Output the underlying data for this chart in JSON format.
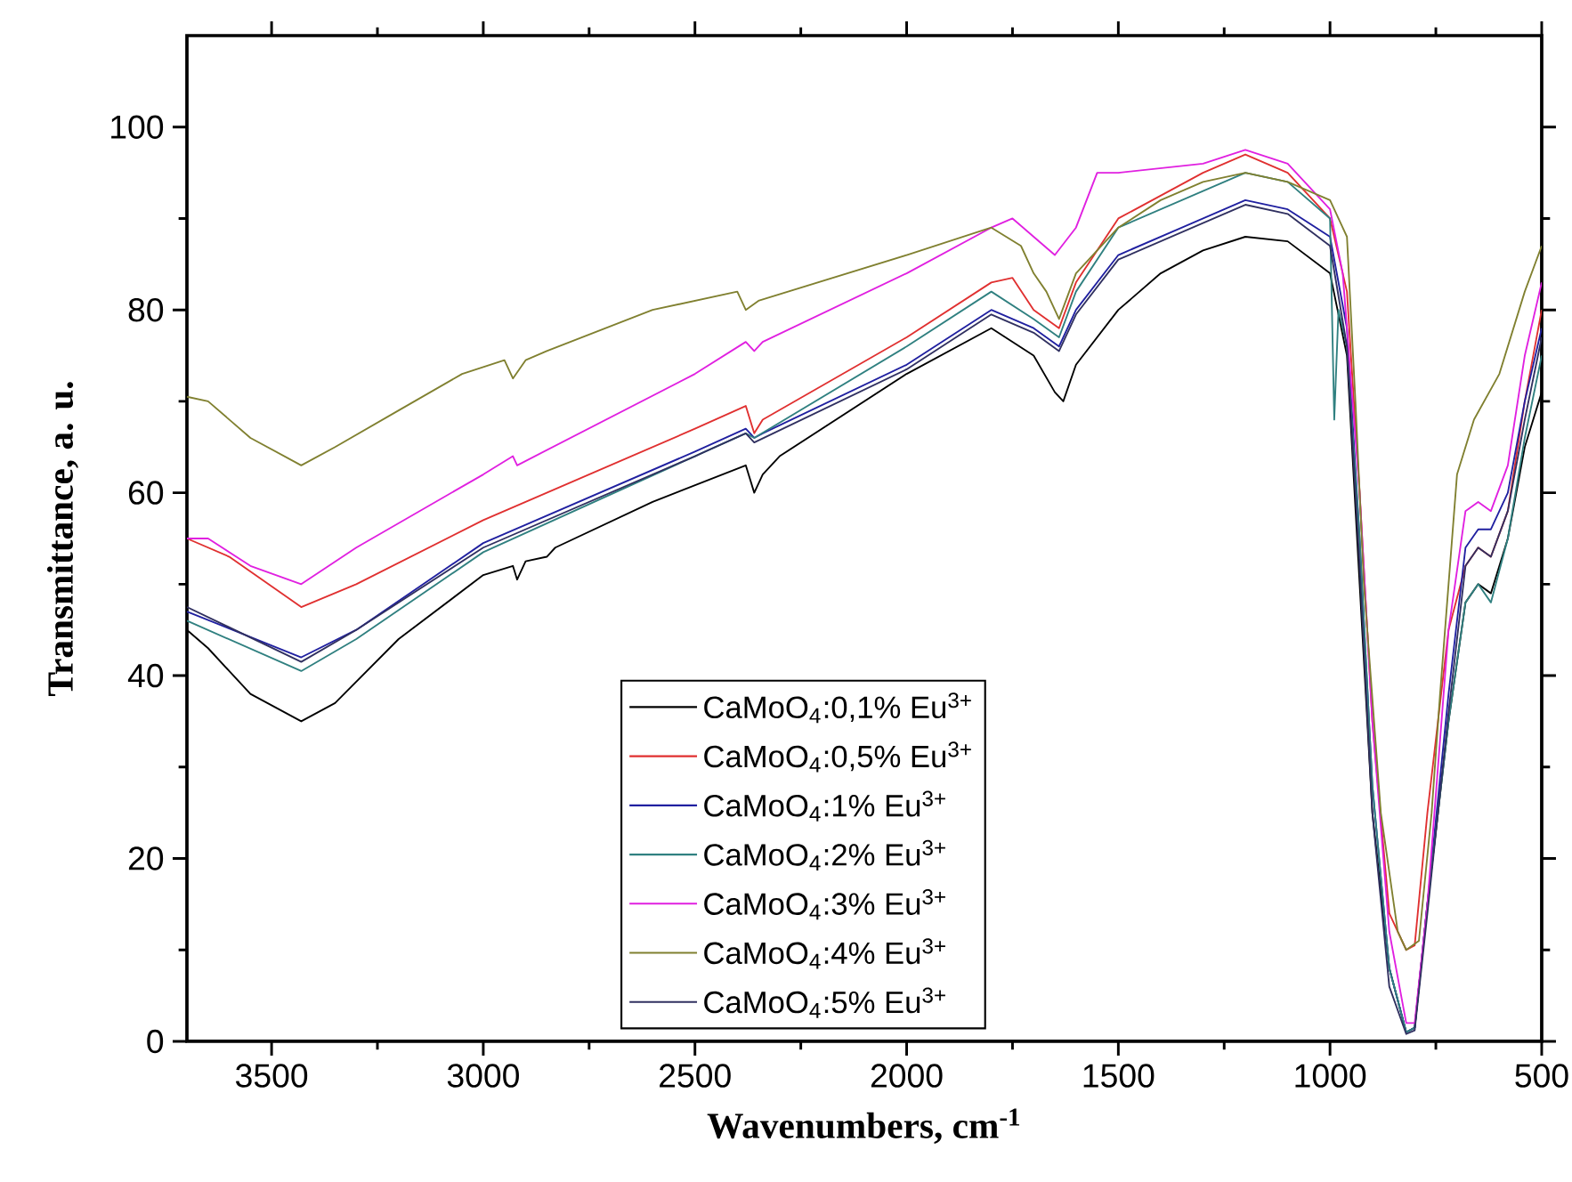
{
  "chart_data": {
    "type": "line",
    "xlabel": "**Wavenumbers, cm$^{-1}$**",
    "ylabel": "**Transmittance, a. u.**",
    "xlim": [
      3700,
      500
    ],
    "ylim": [
      0,
      110
    ],
    "xticks": [
      3500,
      3000,
      2500,
      2000,
      1500,
      1000,
      500
    ],
    "yticks": [
      0,
      20,
      40,
      60,
      80,
      100
    ],
    "legend": "bottom",
    "series": [
      {
        "name": "CaMoO$_{4}$:0,1% Eu$^{3+}$",
        "color": "#000000",
        "x": [
          3700,
          3650,
          3550,
          3430,
          3350,
          3200,
          3000,
          2930,
          2920,
          2900,
          2850,
          2830,
          2600,
          2380,
          2360,
          2340,
          2300,
          2000,
          1800,
          1700,
          1650,
          1630,
          1600,
          1500,
          1400,
          1300,
          1200,
          1100,
          1000,
          960,
          930,
          900,
          860,
          820,
          800,
          770,
          720,
          680,
          650,
          620,
          580,
          540,
          500
        ],
        "values": [
          45,
          43,
          38,
          35,
          37,
          44,
          51,
          52,
          50.5,
          52.5,
          53,
          54,
          59,
          63,
          60,
          62,
          64,
          73,
          78,
          75,
          71,
          70,
          74,
          80,
          84,
          86.5,
          88,
          87.5,
          84,
          75,
          50,
          25,
          8,
          1,
          1.5,
          15,
          35,
          48,
          50,
          49,
          55,
          65,
          71
        ]
      },
      {
        "name": "CaMoO$_{4}$:0,5% Eu$^{3+}$",
        "color": "#e03030",
        "x": [
          3700,
          3600,
          3430,
          3300,
          3000,
          2900,
          2500,
          2380,
          2360,
          2340,
          2000,
          1800,
          1750,
          1700,
          1640,
          1600,
          1500,
          1300,
          1200,
          1100,
          1000,
          960,
          930,
          900,
          860,
          820,
          800,
          770,
          720,
          680,
          650,
          620,
          580,
          540,
          500
        ],
        "values": [
          55,
          53,
          47.5,
          50,
          57,
          59,
          67,
          69.5,
          66.5,
          68,
          77,
          83,
          83.5,
          80,
          78,
          83,
          90,
          95,
          97,
          95,
          90,
          82,
          60,
          35,
          14,
          10,
          10.5,
          25,
          45,
          52,
          54,
          53,
          58,
          70,
          80
        ]
      },
      {
        "name": "CaMoO$_{4}$:1% Eu$^{3+}$",
        "color": "#2020a0",
        "x": [
          3700,
          3430,
          3300,
          3000,
          2900,
          2500,
          2380,
          2360,
          2340,
          2000,
          1800,
          1700,
          1640,
          1600,
          1500,
          1300,
          1200,
          1100,
          1000,
          960,
          930,
          900,
          860,
          820,
          800,
          770,
          720,
          680,
          650,
          620,
          580,
          540,
          500
        ],
        "values": [
          47,
          42,
          45,
          54.5,
          56.5,
          64.5,
          67,
          66,
          66.5,
          74,
          80,
          78,
          76,
          80,
          86,
          90,
          92,
          91,
          88,
          78,
          55,
          28,
          8,
          1,
          1.5,
          15,
          38,
          54,
          56,
          56,
          60,
          70,
          78
        ]
      },
      {
        "name": "CaMoO$_{4}$:2% Eu$^{3+}$",
        "color": "#308080",
        "x": [
          3700,
          3430,
          3300,
          3000,
          2500,
          2380,
          2360,
          2000,
          1800,
          1700,
          1640,
          1600,
          1500,
          1300,
          1200,
          1100,
          1000,
          990,
          980,
          960,
          930,
          900,
          860,
          820,
          800,
          770,
          720,
          680,
          650,
          620,
          580,
          540,
          500
        ],
        "values": [
          46,
          40.5,
          44,
          53.5,
          64,
          66.5,
          66,
          76,
          82,
          79,
          77,
          82,
          89,
          93,
          95,
          94,
          90,
          68,
          80,
          76,
          55,
          28,
          8,
          1,
          1.5,
          15,
          35,
          48,
          50,
          48,
          55,
          66,
          75
        ]
      },
      {
        "name": "CaMoO$_{4}$:3% Eu$^{3+}$",
        "color": "#e020e0",
        "x": [
          3700,
          3650,
          3550,
          3430,
          3300,
          3000,
          2930,
          2920,
          2500,
          2380,
          2360,
          2340,
          2000,
          1800,
          1750,
          1700,
          1650,
          1600,
          1550,
          1500,
          1300,
          1200,
          1100,
          1000,
          970,
          930,
          900,
          860,
          820,
          800,
          770,
          720,
          680,
          650,
          620,
          580,
          540,
          500
        ],
        "values": [
          55,
          55,
          52,
          50,
          54,
          62,
          64,
          63,
          73,
          76.5,
          75.5,
          76.5,
          84,
          89,
          90,
          88,
          86,
          89,
          95,
          95,
          96,
          97.5,
          96,
          91,
          84,
          60,
          35,
          12,
          2,
          2,
          15,
          45,
          58,
          59,
          58,
          63,
          75,
          83
        ]
      },
      {
        "name": "CaMoO$_{4}$:4% Eu$^{3+}$",
        "color": "#808030",
        "x": [
          3700,
          3650,
          3550,
          3430,
          3350,
          3200,
          3050,
          2950,
          2930,
          2900,
          2850,
          2600,
          2400,
          2380,
          2350,
          2000,
          1800,
          1730,
          1700,
          1670,
          1640,
          1600,
          1500,
          1400,
          1300,
          1200,
          1100,
          1000,
          960,
          940,
          920,
          880,
          840,
          820,
          790,
          760,
          740,
          700,
          660,
          600,
          540,
          500
        ],
        "values": [
          70.5,
          70,
          66,
          63,
          65,
          69,
          73,
          74.5,
          72.5,
          74.5,
          75.5,
          80,
          82,
          80,
          81,
          86,
          89,
          87,
          84,
          82,
          79,
          84,
          89,
          92,
          94,
          95,
          94,
          92,
          88,
          70,
          50,
          25,
          12,
          10,
          11,
          25,
          38,
          62,
          68,
          73,
          82,
          87
        ]
      },
      {
        "name": "CaMoO$_{4}$:5% Eu$^{3+}$",
        "color": "#303060",
        "x": [
          3700,
          3430,
          3300,
          3000,
          2500,
          2380,
          2360,
          2000,
          1800,
          1700,
          1640,
          1600,
          1500,
          1300,
          1200,
          1100,
          1000,
          960,
          930,
          900,
          860,
          820,
          800,
          770,
          720,
          680,
          650,
          620,
          580,
          540,
          500
        ],
        "values": [
          47.5,
          41.5,
          45,
          54,
          64,
          66.5,
          65.5,
          73.5,
          79.5,
          77.5,
          75.5,
          79.5,
          85.5,
          89.5,
          91.5,
          90.5,
          87,
          76,
          52,
          25,
          6,
          0.8,
          1.2,
          14,
          36,
          52,
          54,
          53,
          58,
          68,
          77
        ]
      }
    ]
  }
}
